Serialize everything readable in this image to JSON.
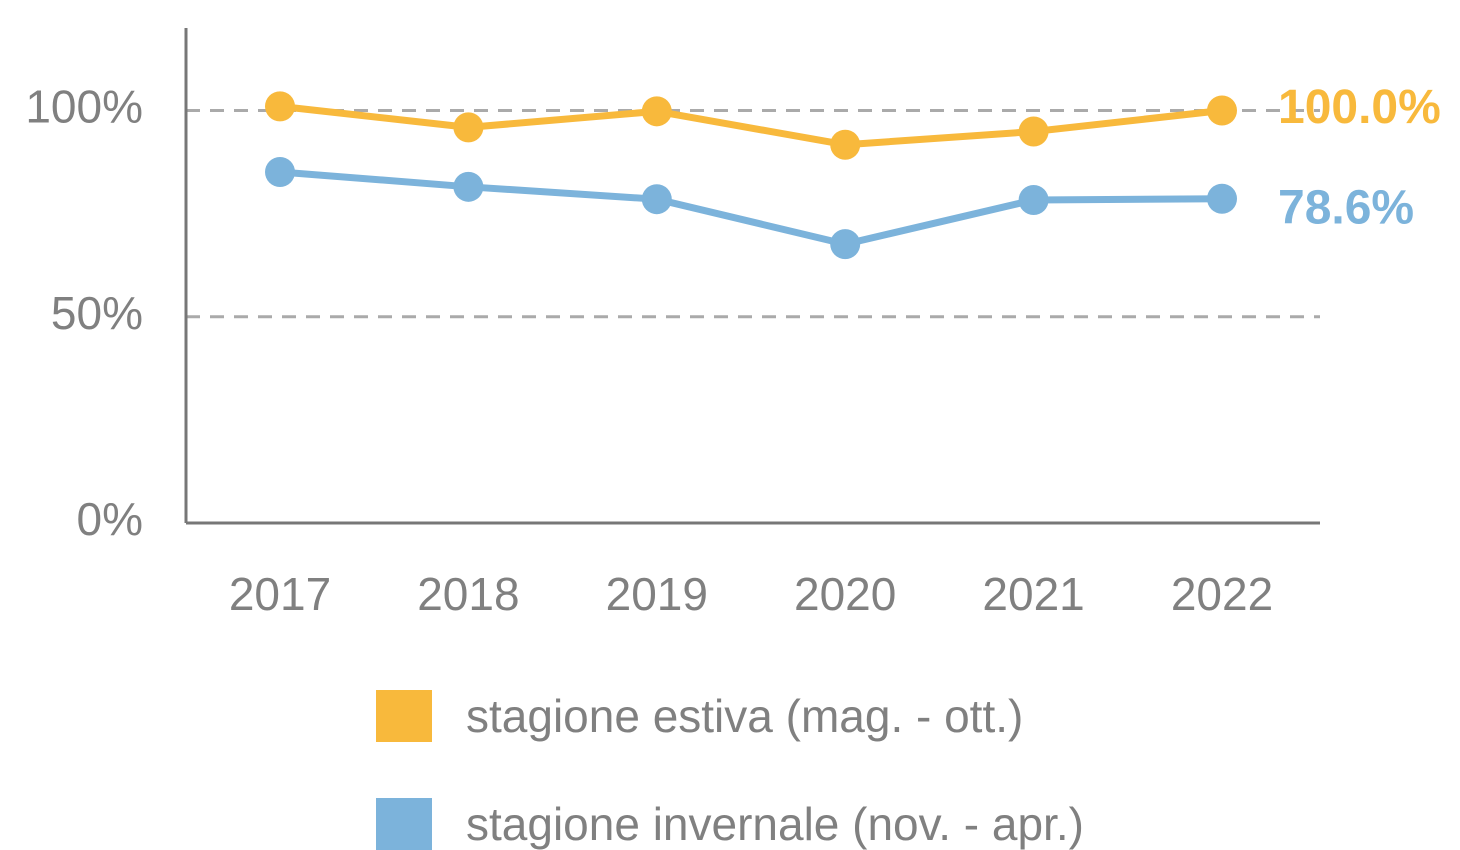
{
  "chart_data": {
    "type": "line",
    "categories": [
      "2017",
      "2018",
      "2019",
      "2020",
      "2021",
      "2022"
    ],
    "series": [
      {
        "name": "stagione estiva (mag. - ott.)",
        "color": "#f8b93c",
        "values": [
          101.0,
          95.9,
          99.8,
          91.7,
          94.9,
          100.0
        ],
        "value_labels": [
          null,
          null,
          null,
          null,
          null,
          "100.0%"
        ]
      },
      {
        "name": "stagione invernale (nov. - apr.)",
        "color": "#7cb3db",
        "values": [
          85.1,
          81.5,
          78.5,
          67.6,
          78.3,
          78.6
        ],
        "value_labels": [
          null,
          null,
          null,
          null,
          null,
          "78.6%"
        ]
      }
    ],
    "ylim": [
      0,
      120
    ],
    "yticks": [
      {
        "value": 0,
        "label": "0%"
      },
      {
        "value": 50,
        "label": "50%"
      },
      {
        "value": 100,
        "label": "100%"
      }
    ],
    "grid": true,
    "legend": "bottom"
  }
}
